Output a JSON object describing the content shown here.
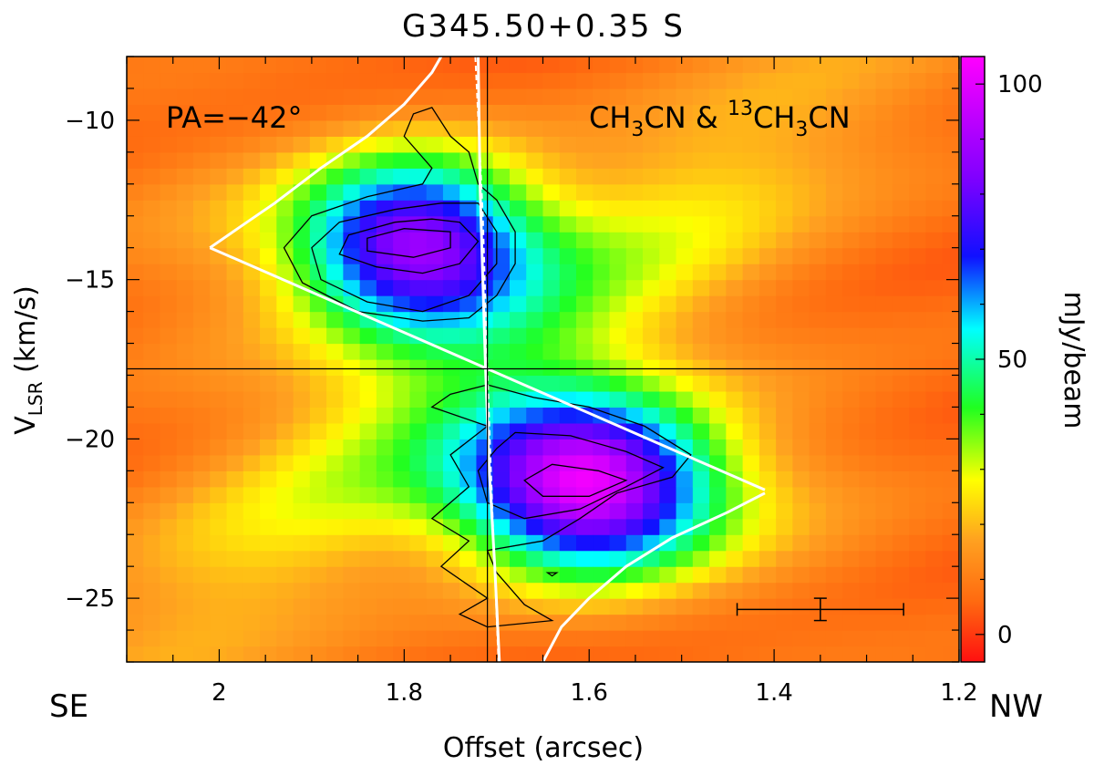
{
  "chart_data": {
    "type": "heatmap",
    "title": "G345.50+0.35 S",
    "xlabel": "Offset (arcsec)",
    "ylabel_main": "V",
    "ylabel_sub": "LSR",
    "ylabel_tail": " (km/s)",
    "x_reversed": true,
    "xlim": [
      2.1,
      1.2
    ],
    "ylim": [
      -27,
      -8
    ],
    "x_ticks": [
      2,
      1.8,
      1.6,
      1.4,
      1.2
    ],
    "x_tick_labels": [
      "2",
      "1.8",
      "1.6",
      "1.4",
      "1.2"
    ],
    "y_ticks": [
      -10,
      -15,
      -20,
      -25
    ],
    "y_tick_labels": [
      "−10",
      "−15",
      "−20",
      "−25"
    ],
    "grid": false,
    "side_labels": {
      "left": "SE",
      "right": "NW"
    },
    "annotations": {
      "pa": "PA=−42°",
      "species_a": "CH",
      "species_a_sub": "3",
      "species_a_tail": "CN & ",
      "species_b_sup": "13",
      "species_b": "CH",
      "species_b_sub": "3",
      "species_b_tail": "CN"
    },
    "reference_lines": {
      "x": 1.71,
      "y": -17.8
    },
    "emission_peaks": [
      {
        "x": 1.79,
        "y": -13.8,
        "value": 85,
        "sx": 0.09,
        "sy": 1.9
      },
      {
        "x": 1.6,
        "y": -21.5,
        "value": 100,
        "sx": 0.095,
        "sy": 1.9
      }
    ],
    "contours": [
      {
        "level": 1,
        "points": [
          [
            1.77,
            -9.6
          ],
          [
            1.75,
            -10.5
          ],
          [
            1.73,
            -11.0
          ],
          [
            1.72,
            -12.0
          ],
          [
            1.7,
            -12.5
          ],
          [
            1.68,
            -13.5
          ],
          [
            1.68,
            -14.5
          ],
          [
            1.7,
            -15.5
          ],
          [
            1.73,
            -16.2
          ],
          [
            1.78,
            -16.3
          ],
          [
            1.85,
            -16.0
          ],
          [
            1.91,
            -15.1
          ],
          [
            1.93,
            -14.0
          ],
          [
            1.9,
            -13.0
          ],
          [
            1.84,
            -12.4
          ],
          [
            1.78,
            -12.0
          ],
          [
            1.77,
            -11.5
          ],
          [
            1.8,
            -10.5
          ],
          [
            1.79,
            -9.8
          ]
        ]
      },
      {
        "level": 2,
        "points": [
          [
            1.72,
            -12.6
          ],
          [
            1.7,
            -13.5
          ],
          [
            1.7,
            -14.5
          ],
          [
            1.73,
            -15.5
          ],
          [
            1.78,
            -16.0
          ],
          [
            1.84,
            -15.7
          ],
          [
            1.89,
            -15.0
          ],
          [
            1.9,
            -14.0
          ],
          [
            1.87,
            -13.2
          ],
          [
            1.81,
            -12.8
          ],
          [
            1.76,
            -12.6
          ]
        ]
      },
      {
        "level": 3,
        "points": [
          [
            1.74,
            -13.2
          ],
          [
            1.72,
            -13.8
          ],
          [
            1.74,
            -14.5
          ],
          [
            1.78,
            -14.8
          ],
          [
            1.83,
            -14.6
          ],
          [
            1.87,
            -14.2
          ],
          [
            1.86,
            -13.6
          ],
          [
            1.81,
            -13.2
          ],
          [
            1.77,
            -13.1
          ]
        ]
      },
      {
        "level": 4,
        "points": [
          [
            1.75,
            -13.5
          ],
          [
            1.75,
            -14.0
          ],
          [
            1.79,
            -14.3
          ],
          [
            1.84,
            -14.1
          ],
          [
            1.84,
            -13.7
          ],
          [
            1.8,
            -13.4
          ]
        ]
      },
      {
        "level": 1,
        "points": [
          [
            1.71,
            -18.3
          ],
          [
            1.66,
            -18.7
          ],
          [
            1.6,
            -19.0
          ],
          [
            1.54,
            -19.6
          ],
          [
            1.49,
            -20.5
          ],
          [
            1.51,
            -21.2
          ],
          [
            1.57,
            -21.7
          ],
          [
            1.61,
            -22.5
          ],
          [
            1.65,
            -23.2
          ],
          [
            1.71,
            -23.5
          ],
          [
            1.7,
            -24.2
          ],
          [
            1.67,
            -25.2
          ],
          [
            1.64,
            -25.7
          ],
          [
            1.71,
            -25.9
          ],
          [
            1.74,
            -25.5
          ],
          [
            1.71,
            -25.0
          ],
          [
            1.76,
            -24.0
          ],
          [
            1.73,
            -23.2
          ],
          [
            1.77,
            -22.5
          ],
          [
            1.73,
            -21.5
          ],
          [
            1.75,
            -20.5
          ],
          [
            1.71,
            -19.6
          ],
          [
            1.77,
            -19.0
          ],
          [
            1.75,
            -18.6
          ]
        ]
      },
      {
        "level": 2,
        "points": [
          [
            1.68,
            -19.8
          ],
          [
            1.62,
            -19.9
          ],
          [
            1.56,
            -20.4
          ],
          [
            1.52,
            -20.9
          ],
          [
            1.56,
            -21.5
          ],
          [
            1.61,
            -22.2
          ],
          [
            1.67,
            -22.5
          ],
          [
            1.71,
            -22.0
          ],
          [
            1.72,
            -21.0
          ],
          [
            1.7,
            -20.3
          ]
        ]
      },
      {
        "level": 3,
        "points": [
          [
            1.64,
            -20.8
          ],
          [
            1.59,
            -21.0
          ],
          [
            1.56,
            -21.3
          ],
          [
            1.6,
            -21.8
          ],
          [
            1.65,
            -21.8
          ],
          [
            1.67,
            -21.3
          ]
        ]
      },
      {
        "level": 1,
        "points": [
          [
            1.645,
            -24.2
          ],
          [
            1.635,
            -24.2
          ],
          [
            1.64,
            -24.3
          ],
          [
            1.645,
            -24.2
          ]
        ]
      }
    ],
    "model_lines": [
      {
        "name": "kepler_upper",
        "style": "solid",
        "points": [
          [
            2.01,
            -14.0
          ],
          [
            1.98,
            -13.4
          ],
          [
            1.94,
            -12.6
          ],
          [
            1.89,
            -11.5
          ],
          [
            1.84,
            -10.5
          ],
          [
            1.8,
            -9.5
          ],
          [
            1.77,
            -8.5
          ],
          [
            1.76,
            -8.0
          ]
        ]
      },
      {
        "name": "kepler_lower",
        "style": "solid",
        "points": [
          [
            1.41,
            -21.7
          ],
          [
            1.45,
            -22.3
          ],
          [
            1.51,
            -23.1
          ],
          [
            1.56,
            -24.0
          ],
          [
            1.6,
            -25.0
          ],
          [
            1.63,
            -25.9
          ],
          [
            1.65,
            -27.0
          ]
        ]
      },
      {
        "name": "envelope_left",
        "style": "solid",
        "points": [
          [
            2.01,
            -14.0
          ],
          [
            1.41,
            -21.6
          ]
        ]
      },
      {
        "name": "dashed_center",
        "style": "dashed",
        "points": [
          [
            1.723,
            -8.0
          ],
          [
            1.715,
            -13.0
          ],
          [
            1.71,
            -17.8
          ],
          [
            1.705,
            -22.0
          ],
          [
            1.698,
            -27.0
          ]
        ]
      },
      {
        "name": "kepler_upper_inner",
        "style": "solid",
        "points": [
          [
            1.72,
            -8.0
          ],
          [
            1.718,
            -12.0
          ],
          [
            1.715,
            -15.0
          ],
          [
            1.712,
            -17.8
          ]
        ]
      },
      {
        "name": "kepler_lower_inner",
        "style": "solid",
        "points": [
          [
            1.712,
            -17.8
          ],
          [
            1.708,
            -21.0
          ],
          [
            1.702,
            -24.0
          ],
          [
            1.697,
            -27.0
          ]
        ]
      }
    ],
    "error_bar": {
      "x": 1.35,
      "y": -25.35,
      "x_half_width": 0.09,
      "y_half_height": 0.35
    },
    "colorbar": {
      "label": "mJy/beam",
      "range": [
        -5,
        105
      ],
      "ticks": [
        0,
        50,
        100
      ],
      "tick_labels": [
        "0",
        "50",
        "100"
      ]
    },
    "colors": {
      "contour": "#000000",
      "model": "#ffffff",
      "error_bar": "#000000"
    }
  }
}
